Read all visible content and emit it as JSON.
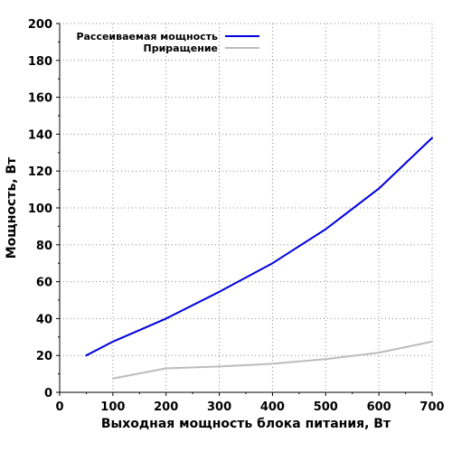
{
  "chart_data": {
    "type": "line",
    "xlabel": "Выходная мощность блока питания, Вт",
    "ylabel": "Мощность, Вт",
    "xlim": [
      0,
      700
    ],
    "ylim": [
      0,
      200
    ],
    "xticks": [
      0,
      100,
      200,
      300,
      400,
      500,
      600,
      700
    ],
    "yticks": [
      0,
      20,
      40,
      60,
      80,
      100,
      120,
      140,
      160,
      180,
      200
    ],
    "grid": true,
    "legend_position": "top-left",
    "series": [
      {
        "name": "Рассеиваемая мощность",
        "color": "#0000e0",
        "x": [
          50,
          100,
          200,
          300,
          400,
          500,
          600,
          700
        ],
        "y": [
          20,
          27.5,
          40,
          54.5,
          70,
          88.5,
          110.5,
          138
        ]
      },
      {
        "name": "Приращение",
        "color": "#bcbcbc",
        "x": [
          100,
          200,
          300,
          400,
          500,
          600,
          700
        ],
        "y": [
          7.5,
          13,
          14,
          15.5,
          18,
          21.5,
          27.5
        ]
      }
    ]
  }
}
